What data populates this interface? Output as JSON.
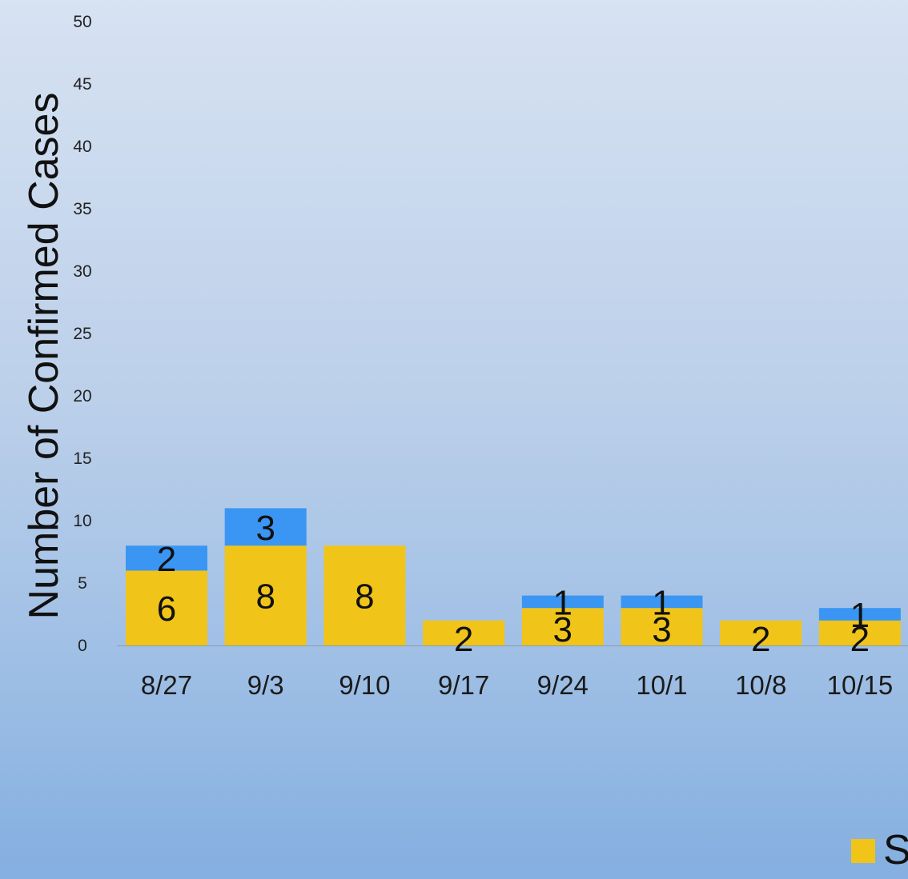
{
  "chart_data": {
    "type": "bar",
    "stacked": true,
    "title": "",
    "xlabel": "",
    "ylabel": "Number of Confirmed Cases",
    "ylim": [
      0,
      50
    ],
    "yticks": [
      0,
      5,
      10,
      15,
      20,
      25,
      30,
      35,
      40,
      45,
      50
    ],
    "grid": false,
    "legend_placement": "bottom-right",
    "categories": [
      "8/27",
      "9/3",
      "9/10",
      "9/17",
      "9/24",
      "10/1",
      "10/8",
      "10/15"
    ],
    "series": [
      {
        "color": "#f0c419",
        "values": [
          6,
          8,
          8,
          2,
          3,
          3,
          2,
          2
        ]
      },
      {
        "color": "#3a96f2",
        "values": [
          2,
          3,
          0,
          0,
          1,
          1,
          0,
          1
        ]
      }
    ],
    "legend": {
      "entries": [
        {
          "color": "#f0c419",
          "text": "S"
        }
      ]
    }
  }
}
